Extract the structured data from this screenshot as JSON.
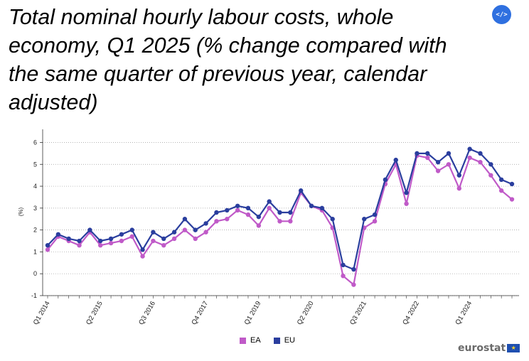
{
  "title": "Total nominal hourly labour costs, whole economy, Q1 2025 (% change compared with the same quarter of previous year, calendar adjusted)",
  "embed_label": "</>",
  "brand": "eurostat",
  "colors": {
    "EA": "#c05ac8",
    "EU": "#2a3e9e"
  },
  "chart_data": {
    "type": "line",
    "title": "Total nominal hourly labour costs, whole economy, Q1 2025 (% change compared with the same quarter of previous year, calendar adjusted)",
    "xlabel": "",
    "ylabel": "(%)",
    "ylim": [
      -1,
      6.6
    ],
    "yticks": [
      -1,
      0,
      1,
      2,
      3,
      4,
      5,
      6
    ],
    "grid": true,
    "legend_position": "bottom",
    "x": [
      "Q1 2014",
      "Q2 2014",
      "Q3 2014",
      "Q4 2014",
      "Q1 2015",
      "Q2 2015",
      "Q3 2015",
      "Q4 2015",
      "Q1 2016",
      "Q2 2016",
      "Q3 2016",
      "Q4 2016",
      "Q1 2017",
      "Q2 2017",
      "Q3 2017",
      "Q4 2017",
      "Q1 2018",
      "Q2 2018",
      "Q3 2018",
      "Q4 2018",
      "Q1 2019",
      "Q2 2019",
      "Q3 2019",
      "Q4 2019",
      "Q1 2020",
      "Q2 2020",
      "Q3 2020",
      "Q4 2020",
      "Q1 2021",
      "Q2 2021",
      "Q3 2021",
      "Q4 2021",
      "Q1 2022",
      "Q2 2022",
      "Q3 2022",
      "Q4 2022",
      "Q1 2023",
      "Q2 2023",
      "Q3 2023",
      "Q4 2023",
      "Q1 2024",
      "Q2 2024",
      "Q3 2024",
      "Q4 2024",
      "Q1 2025"
    ],
    "tick_labels": [
      "Q1 2014",
      "Q2 2015",
      "Q3 2016",
      "Q4 2017",
      "Q1 2019",
      "Q2 2020",
      "Q3 2021",
      "Q4 2022",
      "Q1 2024"
    ],
    "series": [
      {
        "name": "EA",
        "values": [
          1.1,
          1.7,
          1.5,
          1.3,
          1.9,
          1.3,
          1.4,
          1.5,
          1.7,
          0.8,
          1.5,
          1.3,
          1.6,
          2.0,
          1.6,
          1.9,
          2.4,
          2.5,
          2.9,
          2.7,
          2.2,
          3.0,
          2.4,
          2.4,
          3.7,
          3.1,
          2.9,
          2.1,
          -0.1,
          -0.5,
          2.1,
          2.4,
          4.1,
          5.0,
          3.2,
          5.4,
          5.3,
          4.7,
          5.0,
          3.9,
          5.3,
          5.1,
          4.5,
          3.8,
          3.4
        ]
      },
      {
        "name": "EU",
        "values": [
          1.3,
          1.8,
          1.6,
          1.5,
          2.0,
          1.5,
          1.6,
          1.8,
          2.0,
          1.1,
          1.9,
          1.6,
          1.9,
          2.5,
          2.0,
          2.3,
          2.8,
          2.9,
          3.1,
          3.0,
          2.6,
          3.3,
          2.8,
          2.8,
          3.8,
          3.1,
          3.0,
          2.5,
          0.4,
          0.2,
          2.5,
          2.7,
          4.3,
          5.2,
          3.7,
          5.5,
          5.5,
          5.1,
          5.5,
          4.5,
          5.7,
          5.5,
          5.0,
          4.3,
          4.1
        ]
      }
    ]
  }
}
